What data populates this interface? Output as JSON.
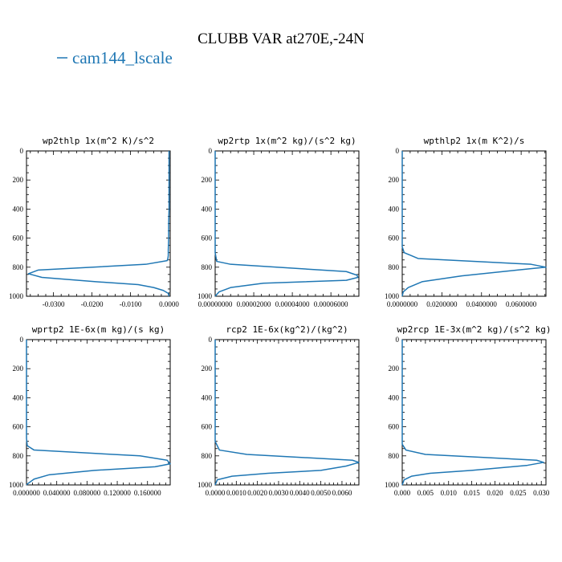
{
  "title": "CLUBB VAR at270E,-24N",
  "legend": {
    "label": "cam144_lscale",
    "color": "#1f77b4"
  },
  "chart_data": [
    {
      "type": "line",
      "title": "wp2thlp  1x(m^2 K)/s^2",
      "series": [
        {
          "name": "cam144_lscale",
          "color": "#1f77b4",
          "x": [
            0,
            0,
            0,
            -0.0001,
            -0.0001,
            -0.0002,
            -0.0002,
            -0.0003,
            -0.0005,
            -0.006,
            -0.034,
            -0.0365,
            -0.033,
            -0.019,
            -0.008,
            -0.004,
            -0.0015,
            -0.0002,
            0
          ],
          "y": [
            0,
            200,
            400,
            500,
            600,
            680,
            720,
            740,
            755,
            780,
            820,
            845,
            870,
            900,
            920,
            940,
            960,
            980,
            1000
          ]
        }
      ],
      "xlim": [
        -0.037,
        0.0003
      ],
      "ylim": [
        1000,
        0
      ],
      "xticks": [
        -0.03,
        -0.02,
        -0.01,
        0.0
      ],
      "xtick_labels": [
        "-0.0300",
        "-0.0200",
        "-0.0100",
        "0.0000"
      ],
      "yticks": [
        0,
        200,
        400,
        600,
        800,
        1000
      ],
      "ytick_labels": [
        "0",
        "200",
        "400",
        "600",
        "800",
        "1000"
      ]
    },
    {
      "type": "line",
      "title": "wp2rtp  1x(m^2 kg)/(s^2 kg)",
      "series": [
        {
          "name": "cam144_lscale",
          "color": "#1f77b4",
          "x": [
            0,
            0,
            0,
            0,
            8e-07,
            8e-06,
            6.8e-05,
            7.35e-05,
            7.4e-05,
            6.8e-05,
            2.5e-05,
            8e-06,
            2e-06,
            0
          ],
          "y": [
            0,
            200,
            400,
            700,
            760,
            780,
            830,
            855,
            870,
            890,
            910,
            940,
            970,
            1000
          ]
        }
      ],
      "xlim": [
        0,
        7.45e-05
      ],
      "ylim": [
        1000,
        0
      ],
      "xticks": [
        0,
        2e-05,
        4e-05,
        6e-05
      ],
      "xtick_labels": [
        "0.00000000",
        "0.00002000",
        "0.00004000",
        "0.00006000"
      ],
      "yticks": [
        0,
        200,
        400,
        600,
        800,
        1000
      ],
      "ytick_labels": [
        "0",
        "200",
        "400",
        "600",
        "800",
        "1000"
      ]
    },
    {
      "type": "line",
      "title": "wpthlp2  1x(m K^2)/s",
      "series": [
        {
          "name": "cam144_lscale",
          "color": "#1f77b4",
          "x": [
            0,
            0,
            0,
            0,
            0.001,
            0.008,
            0.065,
            0.0725,
            0.058,
            0.03,
            0.01,
            0.003,
            0.0005,
            0
          ],
          "y": [
            0,
            200,
            400,
            660,
            700,
            740,
            780,
            800,
            820,
            860,
            900,
            940,
            970,
            1000
          ]
        }
      ],
      "xlim": [
        0,
        0.0725
      ],
      "ylim": [
        1000,
        0
      ],
      "xticks": [
        0,
        0.02,
        0.04,
        0.06
      ],
      "xtick_labels": [
        "0.0000000",
        "0.0200000",
        "0.0400000",
        "0.0600000"
      ],
      "yticks": [
        0,
        200,
        400,
        600,
        800,
        1000
      ],
      "ytick_labels": [
        "0",
        "200",
        "400",
        "600",
        "800",
        "1000"
      ]
    },
    {
      "type": "line",
      "title": "wprtp2  1E-6x(m kg)/(s kg)",
      "series": [
        {
          "name": "cam144_lscale",
          "color": "#1f77b4",
          "x": [
            0,
            0,
            0,
            0,
            0.001,
            0.01,
            0.15,
            0.186,
            0.19,
            0.17,
            0.09,
            0.03,
            0.01,
            0.002,
            0
          ],
          "y": [
            0,
            200,
            400,
            680,
            730,
            760,
            800,
            830,
            855,
            875,
            900,
            930,
            960,
            990,
            1000
          ]
        }
      ],
      "xlim": [
        0,
        0.19
      ],
      "ylim": [
        1000,
        0
      ],
      "xticks": [
        0,
        0.04,
        0.08,
        0.12,
        0.16
      ],
      "xtick_labels": [
        "0.000000",
        "0.040000",
        "0.080000",
        "0.120000",
        "0.160000"
      ],
      "yticks": [
        0,
        200,
        400,
        600,
        800,
        1000
      ],
      "ytick_labels": [
        "0",
        "200",
        "400",
        "600",
        "800",
        "1000"
      ]
    },
    {
      "type": "line",
      "title": "rcp2  1E-6x(kg^2)/(kg^2)",
      "series": [
        {
          "name": "cam144_lscale",
          "color": "#1f77b4",
          "x": [
            0,
            0,
            0,
            0,
            0.0002,
            0.0015,
            0.0065,
            0.0068,
            0.0062,
            0.005,
            0.0025,
            0.0008,
            0.0001,
            0
          ],
          "y": [
            0,
            200,
            400,
            700,
            760,
            790,
            830,
            845,
            870,
            900,
            920,
            940,
            965,
            1000
          ]
        }
      ],
      "xlim": [
        0,
        0.0068
      ],
      "ylim": [
        1000,
        0
      ],
      "xticks": [
        0,
        0.001,
        0.002,
        0.003,
        0.004,
        0.005,
        0.006
      ],
      "xtick_labels": [
        "0.0000",
        "0.0010",
        "0.0020",
        "0.0030",
        "0.0040",
        "0.0050",
        "0.0060"
      ],
      "yticks": [
        0,
        200,
        400,
        600,
        800,
        1000
      ],
      "ytick_labels": [
        "0",
        "200",
        "400",
        "600",
        "800",
        "1000"
      ]
    },
    {
      "type": "line",
      "title": "wp2rcp  1E-3x(m^2 kg)/(s^2 kg)",
      "series": [
        {
          "name": "cam144_lscale",
          "color": "#1f77b4",
          "x": [
            0,
            0,
            0,
            0,
            0.0008,
            0.005,
            0.029,
            0.0305,
            0.027,
            0.015,
            0.006,
            0.002,
            0.0004,
            0
          ],
          "y": [
            0,
            200,
            400,
            720,
            760,
            790,
            830,
            845,
            865,
            900,
            920,
            940,
            965,
            1000
          ]
        }
      ],
      "xlim": [
        0,
        0.031
      ],
      "ylim": [
        1000,
        0
      ],
      "xticks": [
        0,
        0.005,
        0.01,
        0.015,
        0.02,
        0.025,
        0.03
      ],
      "xtick_labels": [
        "0.000",
        "0.005",
        "0.010",
        "0.015",
        "0.020",
        "0.025",
        "0.030"
      ],
      "yticks": [
        0,
        200,
        400,
        600,
        800,
        1000
      ],
      "ytick_labels": [
        "0",
        "200",
        "400",
        "600",
        "800",
        "1000"
      ]
    }
  ]
}
